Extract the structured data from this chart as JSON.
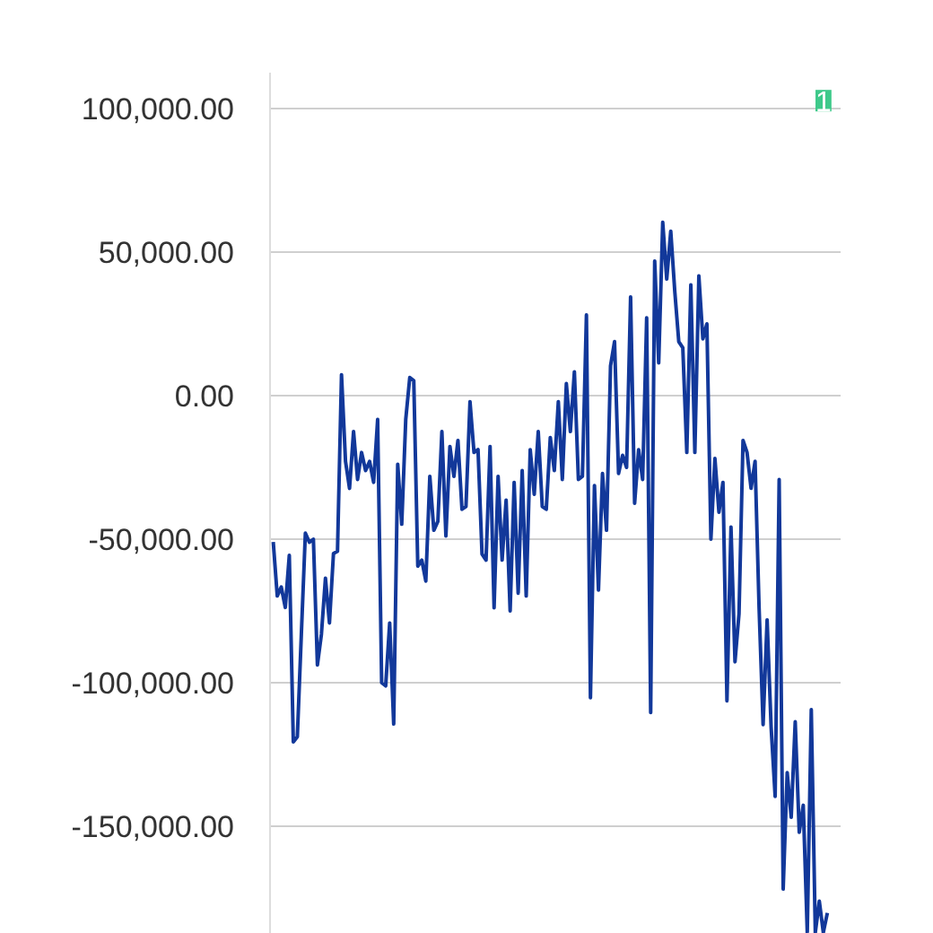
{
  "chart_data": {
    "type": "line",
    "categories": [
      null,
      null,
      null,
      null,
      null,
      null,
      null,
      null,
      null,
      null,
      null,
      null,
      null,
      null,
      null,
      null,
      null,
      null,
      null,
      null,
      null,
      null,
      null,
      null,
      null,
      null,
      null,
      null,
      null,
      null,
      null,
      null,
      null,
      null,
      null,
      null,
      null,
      null,
      null,
      null,
      null,
      null,
      null,
      null,
      null,
      null,
      null,
      null,
      null,
      null,
      null,
      null,
      null,
      null,
      null,
      null,
      null,
      null,
      null,
      null,
      null,
      null,
      null,
      null,
      null,
      null,
      null,
      null,
      null,
      null,
      null,
      null,
      null,
      null,
      null,
      null,
      null,
      null,
      null,
      null,
      null,
      null,
      null,
      null,
      null,
      null,
      null,
      null,
      null,
      null,
      null,
      null,
      null,
      null,
      null,
      null,
      null,
      null,
      null,
      null,
      null,
      null,
      null,
      null,
      null,
      null,
      null,
      null,
      null,
      null,
      null,
      null,
      null,
      null,
      null,
      null,
      null,
      null,
      null,
      null,
      null,
      null,
      null,
      null,
      null,
      null,
      null,
      null,
      null,
      null,
      null,
      null,
      null,
      null,
      null,
      null,
      null,
      null,
      null
    ],
    "series": [
      {
        "color": "#12389a",
        "values": [
          -51000,
          -69800,
          -66700,
          -73800,
          -55600,
          -120600,
          -118800,
          -83100,
          -47900,
          -51100,
          -50000,
          -93800,
          -83100,
          -63600,
          -79200,
          -55000,
          -54200,
          7300,
          -22900,
          -32300,
          -12500,
          -29200,
          -19800,
          -26100,
          -22900,
          -30200,
          -8300,
          -100000,
          -101100,
          -79200,
          -114400,
          -23900,
          -44800,
          -8300,
          6300,
          5200,
          -59400,
          -57300,
          -64600,
          -28100,
          -46900,
          -43800,
          -12500,
          -48900,
          -17700,
          -28100,
          -15600,
          -39600,
          -38600,
          -2100,
          -19800,
          -18800,
          -55200,
          -57300,
          -17700,
          -73900,
          -28100,
          -57300,
          -36400,
          -75000,
          -30200,
          -68800,
          -26100,
          -69800,
          -18800,
          -34400,
          -12500,
          -38600,
          -39600,
          -14600,
          -26100,
          -2100,
          -29200,
          4200,
          -12500,
          8300,
          -29200,
          -28100,
          28100,
          -105200,
          -31300,
          -67700,
          -27100,
          -46900,
          10400,
          18800,
          -27100,
          -20800,
          -25000,
          34400,
          -37500,
          -18800,
          -29200,
          27100,
          -110400,
          46900,
          11400,
          60400,
          40600,
          57300,
          36400,
          18800,
          16700,
          -19800,
          38600,
          -19800,
          41700,
          19800,
          25000,
          -50000,
          -21900,
          -40600,
          -30200,
          -106300,
          -45800,
          -92700,
          -76000,
          -15600,
          -19800,
          -32300,
          -22900,
          -73900,
          -114600,
          -78100,
          -115600,
          -139600,
          -29200,
          -171900,
          -131300,
          -146900,
          -113600,
          -152100,
          -142700,
          -187000,
          -109400,
          -187000,
          -176100,
          -187000,
          -180200
        ]
      }
    ],
    "ylim": [
      -187500,
      112500
    ],
    "yticks": [
      {
        "value": 100000,
        "label": "100,000.00"
      },
      {
        "value": 50000,
        "label": "50,000.00"
      },
      {
        "value": 0,
        "label": "0.00"
      },
      {
        "value": -50000,
        "label": "-50,000.00"
      },
      {
        "value": -100000,
        "label": "-100,000.00"
      },
      {
        "value": -150000,
        "label": "-150,000.00"
      }
    ],
    "tick_labels": "y",
    "grid": "y",
    "line_style": "solid",
    "annotations": [
      "1"
    ]
  }
}
